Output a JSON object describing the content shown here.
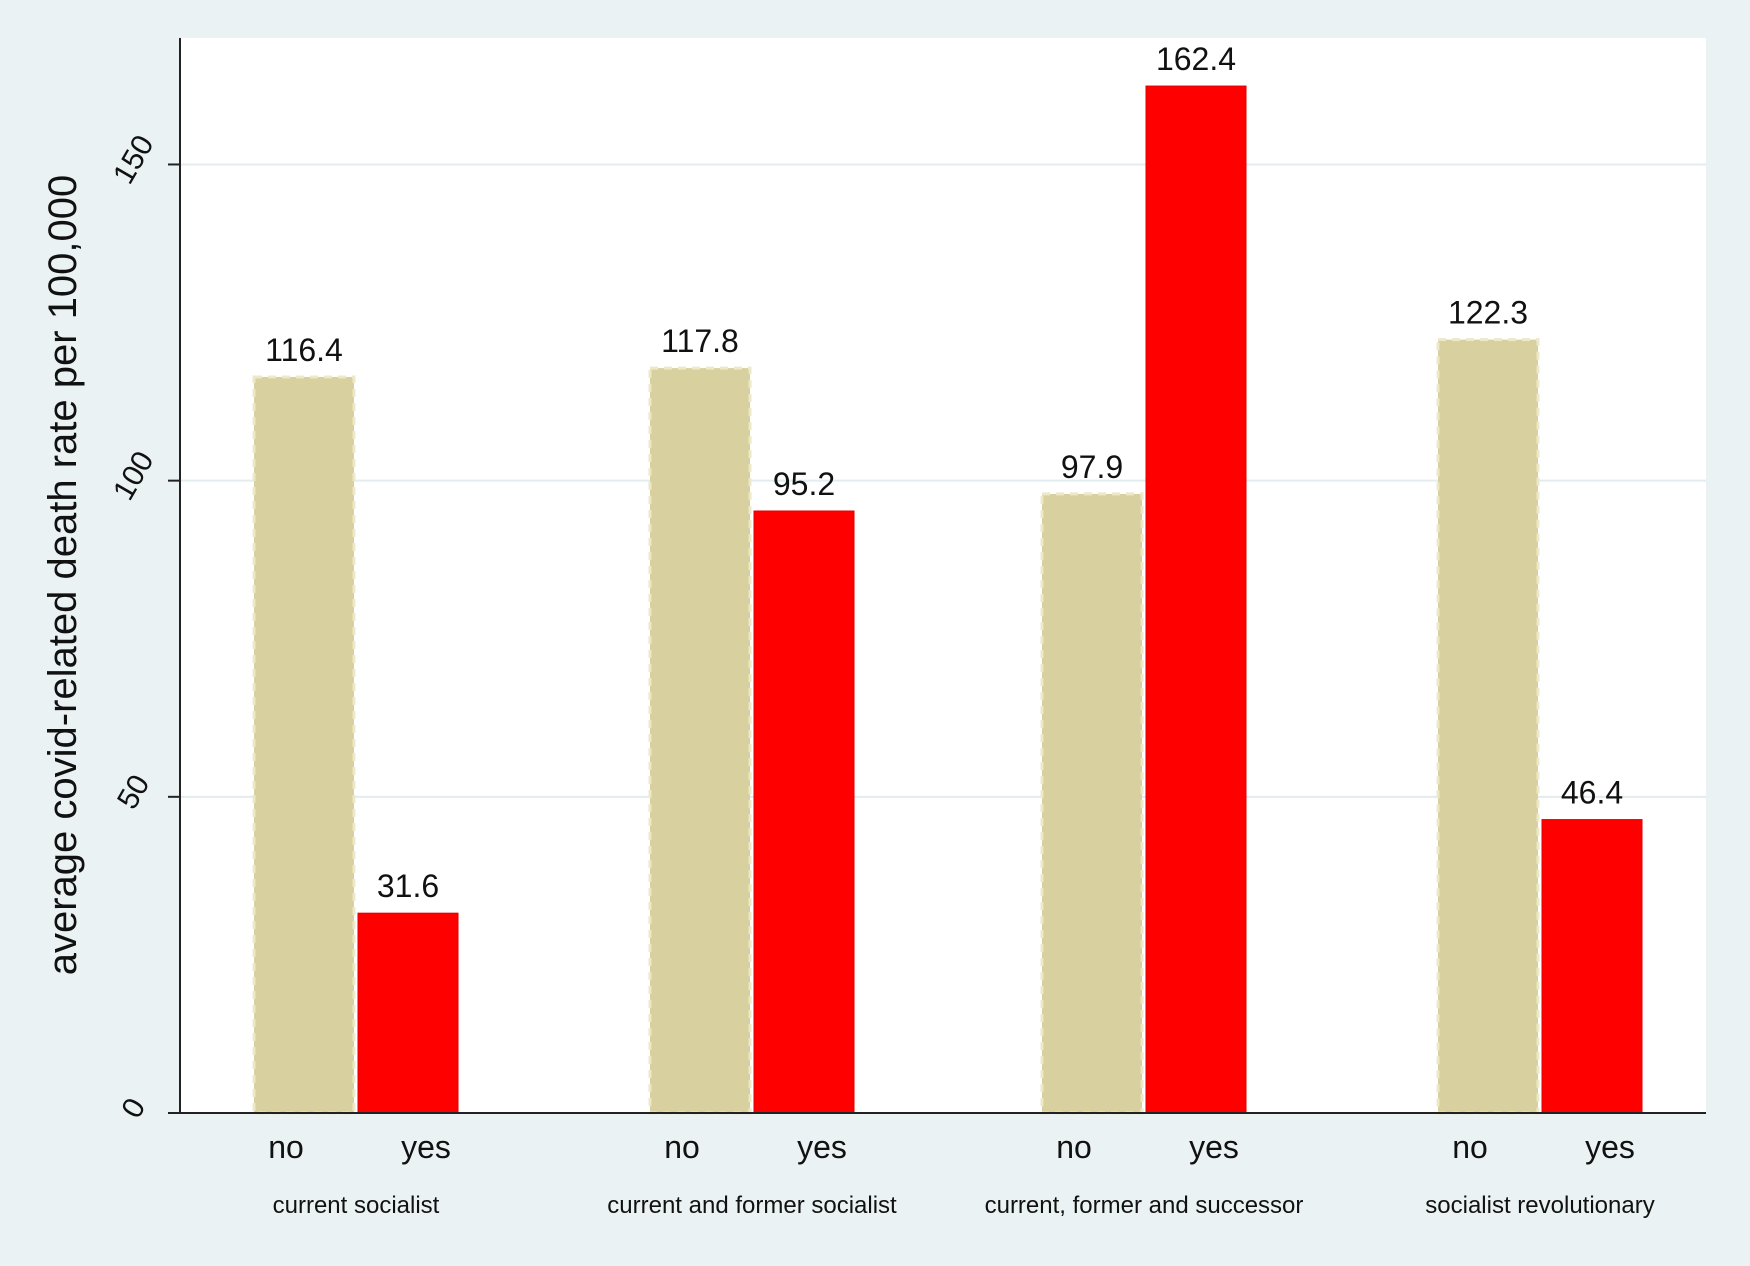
{
  "chart_data": {
    "type": "bar",
    "title": "",
    "xlabel": "",
    "ylabel": "average covid-related death rate per 100,000",
    "ylim": [
      0,
      170
    ],
    "yticks": [
      0,
      50,
      100,
      150
    ],
    "grid": true,
    "groups": [
      {
        "label": "current socialist",
        "bars": [
          {
            "category": "no",
            "value": 116.4,
            "label": "116.4"
          },
          {
            "category": "yes",
            "value": 31.6,
            "label": "31.6"
          }
        ]
      },
      {
        "label": "current and former socialist",
        "bars": [
          {
            "category": "no",
            "value": 117.8,
            "label": "117.8"
          },
          {
            "category": "yes",
            "value": 95.2,
            "label": "95.2"
          }
        ]
      },
      {
        "label": "current, former and successor",
        "bars": [
          {
            "category": "no",
            "value": 97.9,
            "label": "97.9"
          },
          {
            "category": "yes",
            "value": 162.4,
            "label": "162.4"
          }
        ]
      },
      {
        "label": "socialist revolutionary",
        "bars": [
          {
            "category": "no",
            "value": 122.3,
            "label": "122.3"
          },
          {
            "category": "yes",
            "value": 46.4,
            "label": "46.4"
          }
        ]
      }
    ],
    "colors": {
      "no": "#d8d19f",
      "yes": "#ff0000",
      "no_outline": "#ece8c8"
    }
  }
}
